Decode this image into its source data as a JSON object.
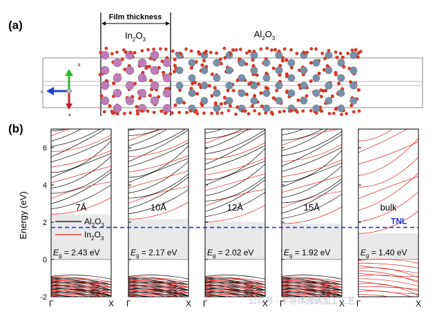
{
  "figure": {
    "panel_a_label": "(a)",
    "panel_b_label": "(b)",
    "film_thickness_label": "Film thickness",
    "in2o3_label": {
      "base": "In",
      "sub1": "2",
      "mid": "O",
      "sub2": "3"
    },
    "al2o3_label": {
      "base": "Al",
      "sub1": "2",
      "mid": "O",
      "sub2": "3"
    },
    "axes_letters": {
      "b": "b",
      "c": "c",
      "a": "a"
    },
    "tnl_label": "TNL",
    "watermark": "公众号 · 半导体微纳加工工艺"
  },
  "colors": {
    "in_atom": "#c07cb8",
    "al_atom": "#7890a8",
    "o_atom": "#d63a2a",
    "tnl_line": "#1f2fd6",
    "band_black": "#000000",
    "band_red": "#e0201a",
    "gap_shade": "#e9e9e9"
  },
  "chart_data": {
    "type": "line",
    "title": "",
    "ylabel": "Energy (eV)",
    "ylim": [
      -2,
      7
    ],
    "yticks": [
      -2,
      0,
      2,
      4,
      6
    ],
    "xtick_labels": [
      "Γ",
      "X"
    ],
    "tnl_energy": 1.72,
    "legend": [
      {
        "label_base": "Al",
        "sub1": "2",
        "mid": "O",
        "sub2": "3",
        "color": "#000000"
      },
      {
        "label_base": "In",
        "sub1": "2",
        "mid": "O",
        "sub2": "3",
        "color": "#e0201a"
      }
    ],
    "panels": [
      {
        "thickness": "7Å",
        "eg_label": "E",
        "eg_sub": "g",
        "eg_value": " = 2.43 eV",
        "vbm": 0.0,
        "cbm": 2.43
      },
      {
        "thickness": "10Å",
        "eg_label": "E",
        "eg_sub": "g",
        "eg_value": " = 2.17 eV",
        "vbm": 0.0,
        "cbm": 2.17
      },
      {
        "thickness": "12Å",
        "eg_label": "E",
        "eg_sub": "g",
        "eg_value": " = 2.02 eV",
        "vbm": 0.0,
        "cbm": 2.02
      },
      {
        "thickness": "15Å",
        "eg_label": "E",
        "eg_sub": "g",
        "eg_value": " = 1.92 eV",
        "vbm": 0.0,
        "cbm": 1.92
      },
      {
        "thickness": "bulk",
        "eg_label": "E",
        "eg_sub": "g",
        "eg_value": " = 1.40 eV",
        "vbm": 0.0,
        "cbm": 1.4
      }
    ]
  }
}
